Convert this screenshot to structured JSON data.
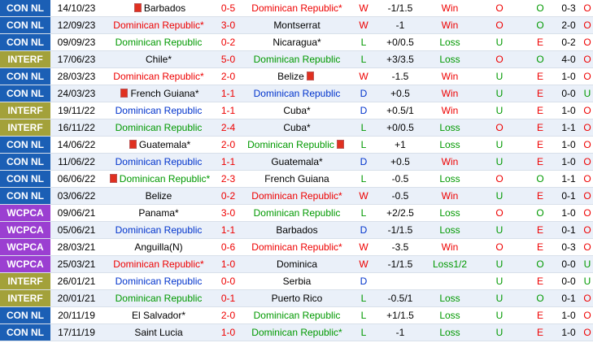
{
  "table": {
    "rows": [
      [
        "CON NL",
        "14/10/23",
        "Barbados",
        "0-5",
        "Dominican Republic*",
        "W",
        "-1/1.5",
        "Win",
        "O",
        "O",
        "0-3",
        "O"
      ],
      [
        "CON NL",
        "12/09/23",
        "Dominican Republic*",
        "3-0",
        "Montserrat",
        "W",
        "-1",
        "Win",
        "O",
        "O",
        "2-0",
        "O"
      ],
      [
        "CON NL",
        "09/09/23",
        "Dominican Republic",
        "0-2",
        "Nicaragua*",
        "L",
        "+0/0.5",
        "Loss",
        "U",
        "E",
        "0-2",
        "O"
      ],
      [
        "INTERF",
        "17/06/23",
        "Chile*",
        "5-0",
        "Dominican Republic",
        "L",
        "+3/3.5",
        "Loss",
        "O",
        "O",
        "4-0",
        "O"
      ],
      [
        "CON NL",
        "28/03/23",
        "Dominican Republic*",
        "2-0",
        "Belize",
        "W",
        "-1.5",
        "Win",
        "U",
        "E",
        "1-0",
        "O"
      ],
      [
        "CON NL",
        "24/03/23",
        "French Guiana*",
        "1-1",
        "Dominican Republic",
        "D",
        "+0.5",
        "Win",
        "U",
        "E",
        "0-0",
        "U"
      ],
      [
        "INTERF",
        "19/11/22",
        "Dominican Republic",
        "1-1",
        "Cuba*",
        "D",
        "+0.5/1",
        "Win",
        "U",
        "E",
        "1-0",
        "O"
      ],
      [
        "INTERF",
        "16/11/22",
        "Dominican Republic",
        "2-4",
        "Cuba*",
        "L",
        "+0/0.5",
        "Loss",
        "O",
        "E",
        "1-1",
        "O"
      ],
      [
        "CON NL",
        "14/06/22",
        "Guatemala*",
        "2-0",
        "Dominican Republic",
        "L",
        "+1",
        "Loss",
        "U",
        "E",
        "1-0",
        "O"
      ],
      [
        "CON NL",
        "11/06/22",
        "Dominican Republic",
        "1-1",
        "Guatemala*",
        "D",
        "+0.5",
        "Win",
        "U",
        "E",
        "1-0",
        "O"
      ],
      [
        "CON NL",
        "06/06/22",
        "Dominican Republic*",
        "2-3",
        "French Guiana",
        "L",
        "-0.5",
        "Loss",
        "O",
        "O",
        "1-1",
        "O"
      ],
      [
        "CON NL",
        "03/06/22",
        "Belize",
        "0-2",
        "Dominican Republic*",
        "W",
        "-0.5",
        "Win",
        "U",
        "E",
        "0-1",
        "O"
      ],
      [
        "WCPCA",
        "09/06/21",
        "Panama*",
        "3-0",
        "Dominican Republic",
        "L",
        "+2/2.5",
        "Loss",
        "O",
        "O",
        "1-0",
        "O"
      ],
      [
        "WCPCA",
        "05/06/21",
        "Dominican Republic",
        "1-1",
        "Barbados",
        "D",
        "-1/1.5",
        "Loss",
        "U",
        "E",
        "0-1",
        "O"
      ],
      [
        "WCPCA",
        "28/03/21",
        "Anguilla(N)",
        "0-6",
        "Dominican Republic*",
        "W",
        "-3.5",
        "Win",
        "O",
        "E",
        "0-3",
        "O"
      ],
      [
        "WCPCA",
        "25/03/21",
        "Dominican Republic*",
        "1-0",
        "Dominica",
        "W",
        "-1/1.5",
        "Loss1/2",
        "U",
        "O",
        "0-0",
        "U"
      ],
      [
        "INTERF",
        "26/01/21",
        "Dominican Republic",
        "0-0",
        "Serbia",
        "D",
        null,
        null,
        "U",
        "E",
        "0-0",
        "U"
      ],
      [
        "INTERF",
        "20/01/21",
        "Dominican Republic",
        "0-1",
        "Puerto Rico",
        "L",
        "-0.5/1",
        "Loss",
        "U",
        "O",
        "0-1",
        "O"
      ],
      [
        "CON NL",
        "20/11/19",
        "El Salvador*",
        "2-0",
        "Dominican Republic",
        "L",
        "+1/1.5",
        "Loss",
        "U",
        "E",
        "1-0",
        "O"
      ],
      [
        "CON NL",
        "17/11/19",
        "Saint Lucia",
        "1-0",
        "Dominican Republic*",
        "L",
        "-1",
        "Loss",
        "U",
        "E",
        "1-0",
        "O"
      ]
    ]
  }
}
